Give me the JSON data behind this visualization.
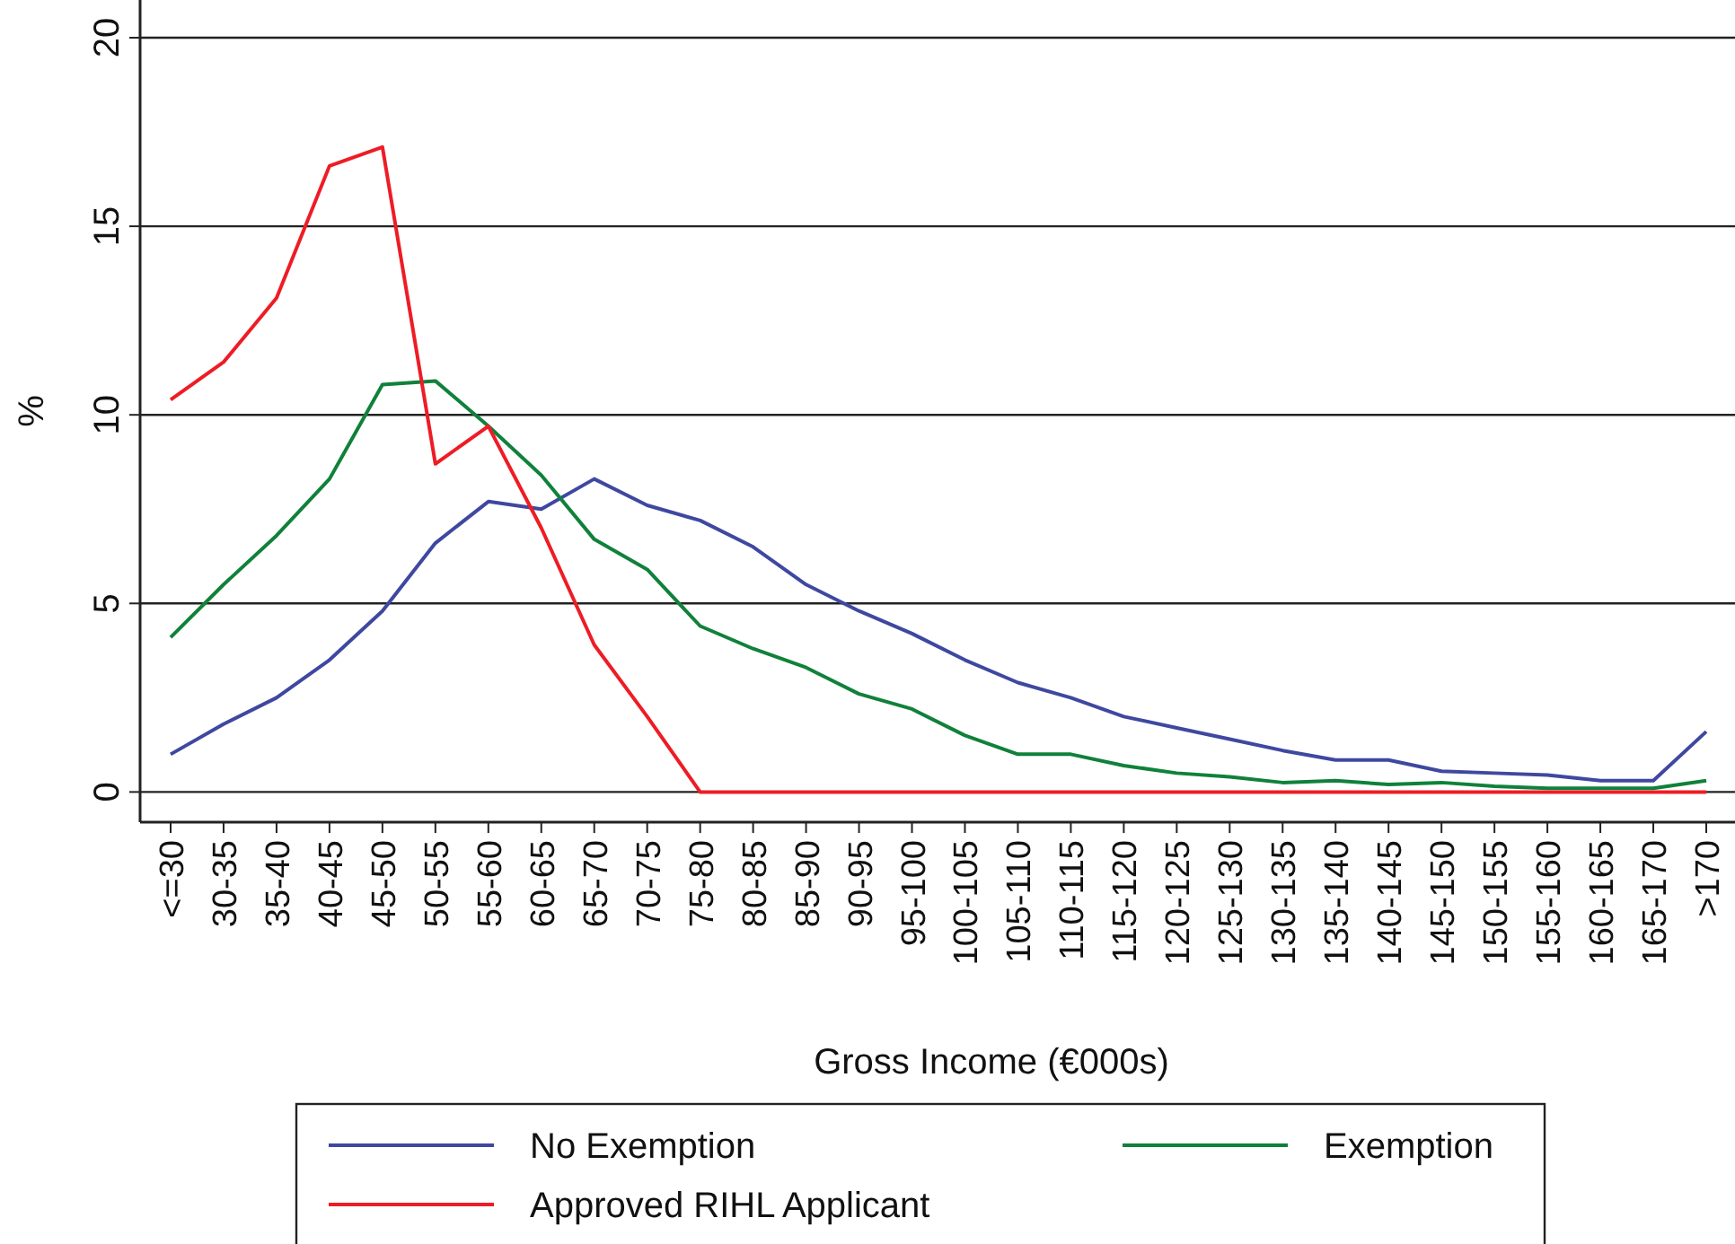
{
  "chart_data": {
    "type": "line",
    "xlabel": "Gross Income (€000s)",
    "ylabel": "%",
    "categories": [
      "<=30",
      "30-35",
      "35-40",
      "40-45",
      "45-50",
      "50-55",
      "55-60",
      "60-65",
      "65-70",
      "70-75",
      "75-80",
      "80-85",
      "85-90",
      "90-95",
      "95-100",
      "100-105",
      "105-110",
      "110-115",
      "115-120",
      "120-125",
      "125-130",
      "130-135",
      "135-140",
      "140-145",
      "145-150",
      "150-155",
      "155-160",
      "160-165",
      "165-170",
      ">170"
    ],
    "series": [
      {
        "name": "No Exemption",
        "color": "#3f48a0",
        "values": [
          1.0,
          1.8,
          2.5,
          3.5,
          4.8,
          6.6,
          7.7,
          7.5,
          8.3,
          7.6,
          7.2,
          6.5,
          5.5,
          4.8,
          4.2,
          3.5,
          2.9,
          2.5,
          2.0,
          1.7,
          1.4,
          1.1,
          0.85,
          0.85,
          0.55,
          0.5,
          0.45,
          0.3,
          0.3,
          1.6
        ]
      },
      {
        "name": "Exemption",
        "color": "#10813a",
        "values": [
          4.1,
          5.5,
          6.8,
          8.3,
          10.8,
          10.9,
          9.7,
          8.4,
          6.7,
          5.9,
          4.4,
          3.8,
          3.3,
          2.6,
          2.2,
          1.5,
          1.0,
          1.0,
          0.7,
          0.5,
          0.4,
          0.25,
          0.3,
          0.2,
          0.25,
          0.15,
          0.1,
          0.1,
          0.1,
          0.3
        ]
      },
      {
        "name": "Approved RIHL Applicant",
        "color": "#ee1c25",
        "values": [
          10.4,
          11.4,
          13.1,
          16.6,
          17.1,
          8.7,
          9.7,
          7.0,
          3.9,
          2.0,
          0,
          0,
          0,
          0,
          0,
          0,
          0,
          0,
          0,
          0,
          0,
          0,
          0,
          0,
          0,
          0,
          0,
          0,
          0,
          0
        ]
      }
    ],
    "ylim": [
      -0.8,
      21
    ],
    "yticks": [
      0,
      5,
      10,
      15,
      20
    ],
    "grid": "y",
    "legend": "bottom",
    "marker": "none",
    "line_style": "solid"
  }
}
